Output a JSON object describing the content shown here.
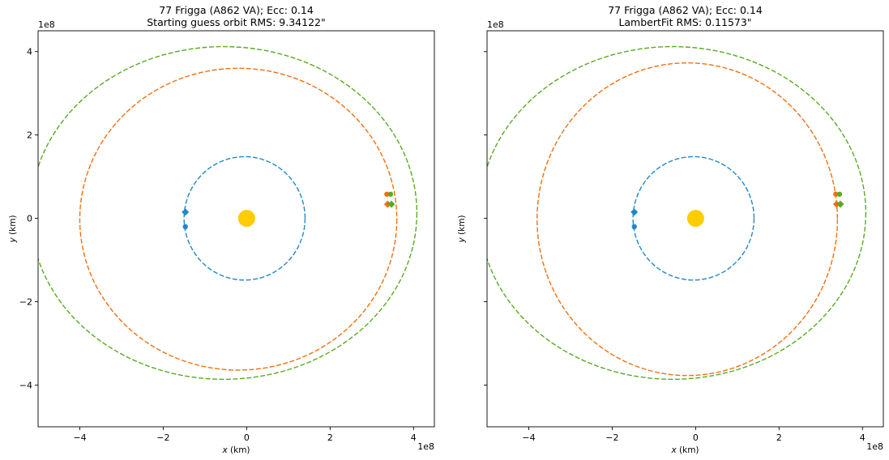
{
  "chart_data": [
    {
      "type": "line",
      "title": "77 Frigga (A862 VA); Ecc: 0.14",
      "subtitle": "Starting guess orbit RMS: 9.34122\"",
      "xlabel_var": "x",
      "xlabel_unit": " (km)",
      "ylabel_var": "y",
      "ylabel_unit": " (km)",
      "xlim": [
        -5,
        4.5
      ],
      "ylim": [
        -5,
        4.5
      ],
      "scale_offset": "1e8",
      "xticks": [
        -4,
        -2,
        0,
        2,
        4
      ],
      "yticks": [
        -4,
        -2,
        0,
        2,
        4
      ],
      "xtick_labels": [
        "−4",
        "−2",
        "0",
        "2",
        "4"
      ],
      "ytick_labels": [
        "−4",
        "−2",
        "0",
        "2",
        "4"
      ],
      "sun": {
        "x": 0,
        "y": 0,
        "color": "#ffcc00"
      },
      "orbits": [
        {
          "color": "#1f88c9",
          "cx": -0.05,
          "cy": 0.0,
          "rx": 1.45,
          "ry": 1.48
        },
        {
          "color": "#f07010",
          "cx": -0.2,
          "cy": -0.02,
          "rx": 3.8,
          "ry": 3.62
        },
        {
          "color": "#5aaa22",
          "cx": -0.55,
          "cy": 0.13,
          "rx": 4.63,
          "ry": 3.99
        }
      ],
      "markers": [
        {
          "color": "#1f88c9",
          "x": -1.47,
          "y": 0.15,
          "shape": "diamond"
        },
        {
          "color": "#1f88c9",
          "x": -1.47,
          "y": -0.2,
          "shape": "dot"
        },
        {
          "color": "#f07010",
          "x": 3.36,
          "y": 0.58,
          "shape": "dot"
        },
        {
          "color": "#5aaa22",
          "x": 3.45,
          "y": 0.58,
          "shape": "dot"
        },
        {
          "color": "#f07010",
          "x": 3.38,
          "y": 0.34,
          "shape": "diamond"
        },
        {
          "color": "#5aaa22",
          "x": 3.47,
          "y": 0.34,
          "shape": "diamond"
        }
      ]
    },
    {
      "type": "line",
      "title": "77 Frigga (A862 VA); Ecc: 0.14",
      "subtitle": "LambertFit RMS: 0.11573\"",
      "xlabel_var": "x",
      "xlabel_unit": " (km)",
      "ylabel_var": "y",
      "ylabel_unit": " (km)",
      "xlim": [
        -5,
        4.5
      ],
      "ylim": [
        -5,
        4.5
      ],
      "scale_offset": "1e8",
      "xticks": [
        -4,
        -2,
        0,
        2,
        4
      ],
      "yticks": [
        -4,
        -2,
        0,
        2,
        4
      ],
      "xtick_labels": [
        "−4",
        "−2",
        "0",
        "2",
        "4"
      ],
      "ytick_labels": [],
      "sun": {
        "x": 0,
        "y": 0,
        "color": "#ffcc00"
      },
      "orbits": [
        {
          "color": "#1f88c9",
          "cx": -0.05,
          "cy": 0.0,
          "rx": 1.45,
          "ry": 1.48
        },
        {
          "color": "#f07010",
          "cx": -0.2,
          "cy": -0.02,
          "rx": 3.6,
          "ry": 3.75
        },
        {
          "color": "#5aaa22",
          "cx": -0.55,
          "cy": 0.13,
          "rx": 4.63,
          "ry": 3.99
        }
      ],
      "markers": [
        {
          "color": "#1f88c9",
          "x": -1.47,
          "y": 0.15,
          "shape": "diamond"
        },
        {
          "color": "#1f88c9",
          "x": -1.47,
          "y": -0.2,
          "shape": "dot"
        },
        {
          "color": "#f07010",
          "x": 3.36,
          "y": 0.58,
          "shape": "dot"
        },
        {
          "color": "#5aaa22",
          "x": 3.45,
          "y": 0.58,
          "shape": "dot"
        },
        {
          "color": "#f07010",
          "x": 3.38,
          "y": 0.34,
          "shape": "diamond"
        },
        {
          "color": "#5aaa22",
          "x": 3.47,
          "y": 0.34,
          "shape": "diamond"
        }
      ]
    }
  ]
}
